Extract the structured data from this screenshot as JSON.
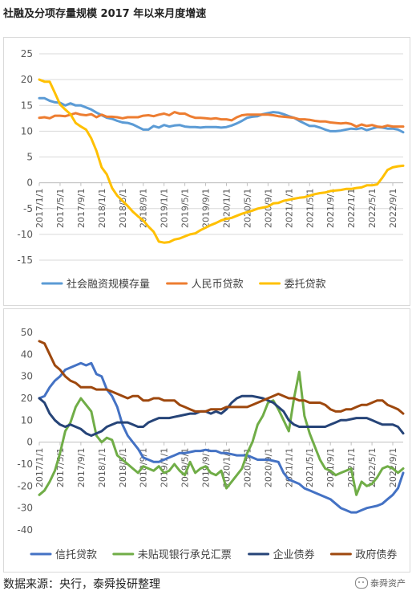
{
  "title": "社融及分项存量规模 2017 年以来月度增速",
  "footer": "数据来源：央行，泰舜投研整理",
  "brand": "泰舜资产",
  "chart_data": [
    {
      "type": "line",
      "title": "",
      "ylim": [
        -15,
        25
      ],
      "yticks": [
        -15,
        -10,
        -5,
        0,
        5,
        10,
        15,
        20,
        25
      ],
      "x_ticks": [
        "2017/1/1",
        "2017/5/1",
        "2017/9/1",
        "2018/1/1",
        "2018/5/1",
        "2018/9/1",
        "2019/1/1",
        "2019/5/1",
        "2019/9/1",
        "2020/1/1",
        "2020/5/1",
        "2020/9/1",
        "2021/1/1",
        "2021/5/1",
        "2021/9/1",
        "2022/1/1",
        "2022/5/1",
        "2022/9/1"
      ],
      "n_months": 71,
      "legend_position": "bottom",
      "grid": true,
      "series": [
        {
          "name": "社会融资规模存量",
          "color": "#5B9BD5",
          "values": [
            16.4,
            16.4,
            15.9,
            15.6,
            15.5,
            15.0,
            15.4,
            15.0,
            15.0,
            14.6,
            14.2,
            13.6,
            13.1,
            12.6,
            12.4,
            12.0,
            11.7,
            11.6,
            11.3,
            10.8,
            10.3,
            10.3,
            11.0,
            10.7,
            11.2,
            10.9,
            11.1,
            11.2,
            10.9,
            10.8,
            10.8,
            10.7,
            10.8,
            10.8,
            10.8,
            10.7,
            10.8,
            11.1,
            11.5,
            12.0,
            12.6,
            12.8,
            12.9,
            13.3,
            13.5,
            13.7,
            13.6,
            13.3,
            12.9,
            12.6,
            12.0,
            11.5,
            11.0,
            11.0,
            10.7,
            10.3,
            10.0,
            10.0,
            10.1,
            10.3,
            10.5,
            10.4,
            10.6,
            10.2,
            10.5,
            10.8,
            10.7,
            10.5,
            10.5,
            10.3,
            9.8
          ]
        },
        {
          "name": "人民币贷款",
          "color": "#ED7D31",
          "values": [
            12.6,
            12.7,
            12.5,
            13.0,
            13.0,
            12.9,
            13.2,
            13.5,
            13.2,
            13.1,
            13.3,
            12.7,
            13.2,
            12.8,
            12.8,
            12.7,
            12.5,
            12.7,
            12.7,
            12.7,
            13.0,
            13.1,
            12.9,
            13.2,
            13.4,
            13.1,
            13.7,
            13.4,
            13.4,
            12.9,
            12.6,
            12.6,
            12.5,
            12.4,
            12.5,
            12.3,
            12.3,
            12.1,
            12.7,
            13.1,
            13.2,
            13.2,
            13.2,
            13.2,
            13.2,
            13.1,
            12.9,
            12.8,
            12.7,
            12.6,
            12.3,
            12.3,
            12.2,
            12.0,
            11.9,
            11.9,
            11.7,
            11.6,
            11.5,
            11.6,
            11.4,
            10.9,
            11.3,
            11.0,
            11.2,
            10.9,
            10.8,
            11.1,
            10.9,
            10.9,
            10.9
          ]
        },
        {
          "name": "委托贷款",
          "color": "#FFC000",
          "values": [
            20.0,
            19.6,
            19.6,
            17.4,
            15.2,
            14.2,
            13.3,
            11.6,
            10.9,
            10.3,
            8.6,
            6.2,
            3.0,
            1.6,
            -1.0,
            -2.5,
            -3.5,
            -4.5,
            -5.6,
            -6.5,
            -7.3,
            -8.5,
            -9.5,
            -11.4,
            -11.6,
            -11.5,
            -11.0,
            -10.8,
            -10.4,
            -10.0,
            -9.8,
            -9.2,
            -8.7,
            -8.2,
            -7.8,
            -7.3,
            -7.0,
            -6.8,
            -6.4,
            -6.0,
            -5.7,
            -5.4,
            -5.0,
            -4.8,
            -4.6,
            -4.0,
            -3.9,
            -3.5,
            -3.3,
            -3.1,
            -2.9,
            -2.8,
            -2.5,
            -2.2,
            -2.0,
            -1.9,
            -1.6,
            -1.5,
            -1.4,
            -1.2,
            -1.2,
            -1.0,
            -0.9,
            -0.5,
            -0.5,
            -0.3,
            1.0,
            2.5,
            3.0,
            3.2,
            3.3
          ]
        }
      ]
    },
    {
      "type": "line",
      "title": "",
      "ylim": [
        -40,
        50
      ],
      "yticks": [
        -40,
        -30,
        -20,
        -10,
        0,
        10,
        20,
        30,
        40,
        50
      ],
      "x_ticks": [
        "2017/1/1",
        "2017/5/1",
        "2017/9/1",
        "2018/1/1",
        "2018/5/1",
        "2018/9/1",
        "2019/1/1",
        "2019/5/1",
        "2019/9/1",
        "2020/1/1",
        "2020/5/1",
        "2020/9/1",
        "2021/1/1",
        "2021/5/1",
        "2021/9/1",
        "2022/1/1",
        "2022/5/1",
        "2022/9/1"
      ],
      "n_months": 71,
      "legend_position": "bottom",
      "grid": false,
      "series": [
        {
          "name": "信托贷款",
          "color": "#4472C4",
          "values": [
            20,
            21,
            25,
            28,
            30,
            33,
            34,
            35,
            36,
            35,
            36,
            31,
            30,
            24,
            21,
            16,
            8,
            3,
            0,
            -3,
            -7,
            -8,
            -9,
            -9,
            -8,
            -7,
            -6,
            -5,
            -5,
            -4.5,
            -4,
            -4,
            -3.5,
            -4,
            -4,
            -5,
            -5,
            -5.5,
            -6,
            -6,
            -6,
            -7,
            -8,
            -8,
            -8,
            -8.5,
            -9,
            -14,
            -17,
            -18,
            -19,
            -21,
            -22,
            -23,
            -24,
            -25,
            -26,
            -28,
            -30,
            -31,
            -32,
            -32,
            -31,
            -30,
            -29.5,
            -29,
            -28,
            -26,
            -24,
            -21,
            -14
          ]
        },
        {
          "name": "未贴现银行承兑汇票",
          "color": "#70AD47",
          "values": [
            -24,
            -22,
            -18,
            -13,
            -5,
            5,
            9,
            16,
            20,
            17,
            14,
            3,
            0,
            2,
            1,
            -6,
            -8,
            -10,
            -12,
            -14,
            -11,
            -12,
            -13,
            -11,
            -14,
            -13,
            -10,
            -13,
            -15,
            -9,
            -14,
            -12,
            -11,
            -14,
            -15,
            -13,
            -21,
            -18,
            -15,
            -12,
            -5,
            0,
            8,
            12,
            18,
            19,
            15,
            10,
            5,
            20,
            32,
            12,
            4,
            -2,
            -8,
            -12,
            -13,
            -15,
            -14,
            -13,
            -12,
            -24,
            -18,
            -20,
            -19,
            -16,
            -12,
            -11,
            -12,
            -14,
            -12
          ]
        },
        {
          "name": "企业债券",
          "color": "#264478",
          "values": [
            20,
            18,
            13,
            10,
            8,
            7,
            8,
            7,
            6,
            4,
            3,
            4,
            5,
            7,
            8,
            9,
            9,
            9,
            8,
            7,
            7,
            9,
            10,
            11,
            11,
            11,
            11.5,
            12,
            12.5,
            13,
            13,
            14,
            14,
            13,
            14,
            13,
            15,
            18,
            20,
            21,
            21,
            21,
            20.5,
            20,
            19,
            18,
            16,
            14,
            10,
            8,
            7,
            7,
            7,
            7,
            7,
            7,
            8,
            9,
            10,
            10,
            10.5,
            11,
            11,
            11,
            10,
            9,
            8,
            8,
            8,
            7,
            4
          ]
        },
        {
          "name": "政府债券",
          "color": "#9E480E",
          "values": [
            46,
            45,
            40,
            35,
            33,
            30,
            28,
            27,
            25,
            25,
            25,
            24,
            24,
            24,
            23,
            22,
            21,
            20,
            21,
            21,
            19,
            19,
            20,
            20,
            19,
            19,
            19,
            17,
            16,
            15,
            14,
            14,
            14,
            15,
            15,
            15,
            16,
            16,
            16,
            16,
            16,
            17,
            18,
            19,
            20,
            21,
            22,
            21,
            20,
            20,
            19,
            19,
            18,
            18,
            18,
            17,
            15,
            14,
            14,
            15,
            15,
            16,
            17,
            17,
            18,
            19,
            19,
            17,
            16,
            15,
            13
          ]
        }
      ]
    }
  ]
}
